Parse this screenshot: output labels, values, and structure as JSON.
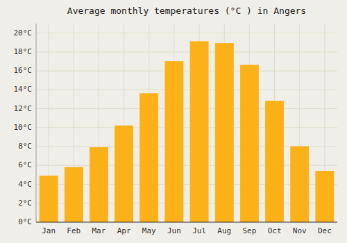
{
  "chart_data": {
    "type": "bar",
    "title": "Average monthly temperatures (°C ) in Angers",
    "categories": [
      "Jan",
      "Feb",
      "Mar",
      "Apr",
      "May",
      "Jun",
      "Jul",
      "Aug",
      "Sep",
      "Oct",
      "Nov",
      "Dec"
    ],
    "values": [
      4.9,
      5.8,
      7.9,
      10.2,
      13.6,
      17.0,
      19.1,
      18.9,
      16.6,
      12.8,
      8.0,
      5.4
    ],
    "color": "#FBB117",
    "ylim": [
      0,
      21
    ],
    "yticks": [
      {
        "value": 0,
        "label": "0°C"
      },
      {
        "value": 2,
        "label": "2°C"
      },
      {
        "value": 4,
        "label": "4°C"
      },
      {
        "value": 6,
        "label": "6°C"
      },
      {
        "value": 8,
        "label": "8°C"
      },
      {
        "value": 10,
        "label": "10°C"
      },
      {
        "value": 12,
        "label": "12°C"
      },
      {
        "value": 14,
        "label": "14°C"
      },
      {
        "value": 16,
        "label": "16°C"
      },
      {
        "value": 18,
        "label": "18°C"
      },
      {
        "value": 20,
        "label": "20°C"
      }
    ],
    "grid": true
  }
}
